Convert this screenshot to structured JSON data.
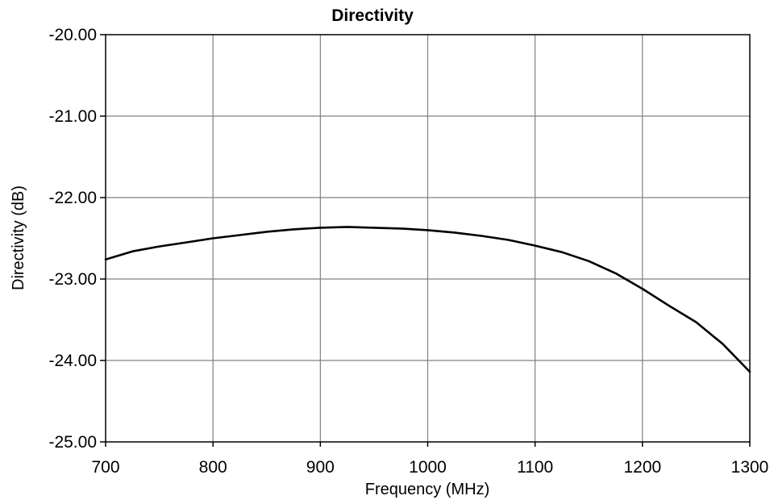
{
  "chart_data": {
    "type": "line",
    "title": "Directivity",
    "xlabel": "Frequency (MHz)",
    "ylabel": "Directivity (dB)",
    "xlim": [
      700,
      1300
    ],
    "ylim": [
      -25.0,
      -20.0
    ],
    "x_ticks": [
      700,
      800,
      900,
      1000,
      1100,
      1200,
      1300
    ],
    "x_tick_labels": [
      "700",
      "800",
      "900",
      "1000",
      "1100",
      "1200",
      "1300"
    ],
    "y_ticks": [
      -20.0,
      -21.0,
      -22.0,
      -23.0,
      -24.0,
      -25.0
    ],
    "y_tick_labels": [
      "-20.00",
      "-21.00",
      "-22.00",
      "-23.00",
      "-24.00",
      "-25.00"
    ],
    "grid": true,
    "legend": "none",
    "series": [
      {
        "color": "#000000",
        "x": [
          700,
          725,
          750,
          775,
          800,
          825,
          850,
          875,
          900,
          925,
          950,
          975,
          1000,
          1025,
          1050,
          1075,
          1100,
          1125,
          1150,
          1175,
          1200,
          1225,
          1250,
          1275,
          1300
        ],
        "y": [
          -22.76,
          -22.66,
          -22.6,
          -22.55,
          -22.5,
          -22.46,
          -22.42,
          -22.39,
          -22.37,
          -22.36,
          -22.37,
          -22.38,
          -22.4,
          -22.43,
          -22.47,
          -22.52,
          -22.59,
          -22.67,
          -22.78,
          -22.93,
          -23.12,
          -23.33,
          -23.53,
          -23.8,
          -24.14
        ]
      }
    ]
  }
}
